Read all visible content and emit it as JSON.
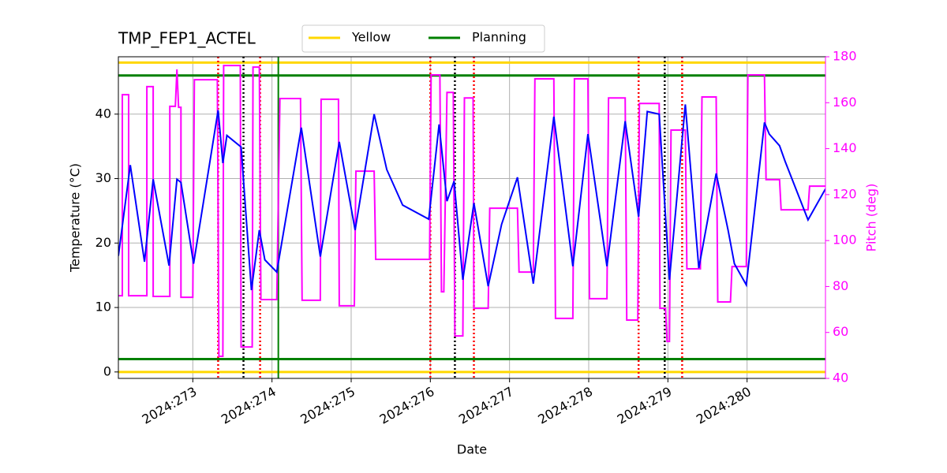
{
  "chart_data": {
    "type": "line",
    "title": "TMP_FEP1_ACTEL",
    "xlabel": "Date",
    "ylabel": "Temperature (°C)",
    "y2label": "Pitch (deg)",
    "y2color": "magenta",
    "grid": true,
    "legend_loc": "upper center",
    "xlim": [
      272.06,
      280.99
    ],
    "ylim": [
      -1,
      48.9
    ],
    "y2lim": [
      40,
      180
    ],
    "xticks": [
      {
        "value": 273,
        "label": "2024:273"
      },
      {
        "value": 274,
        "label": "2024:274"
      },
      {
        "value": 275,
        "label": "2024:275"
      },
      {
        "value": 276,
        "label": "2024:276"
      },
      {
        "value": 277,
        "label": "2024:277"
      },
      {
        "value": 278,
        "label": "2024:278"
      },
      {
        "value": 279,
        "label": "2024:279"
      },
      {
        "value": 280,
        "label": "2024:280"
      }
    ],
    "yticks": [
      0,
      10,
      20,
      30,
      40
    ],
    "y2ticks": [
      40,
      60,
      80,
      100,
      120,
      140,
      160,
      180
    ],
    "hlines": [
      {
        "name": "Yellow",
        "color": "gold",
        "values": [
          48,
          0
        ]
      },
      {
        "name": "Planning",
        "color": "green",
        "values": [
          46,
          2
        ]
      }
    ],
    "vlines": [
      {
        "color": "green",
        "style": "solid",
        "x": [
          274.08
        ]
      },
      {
        "color": "red",
        "style": "dotted",
        "x": [
          273.32,
          273.85,
          276.0,
          276.55,
          278.63,
          279.18
        ]
      },
      {
        "color": "black",
        "style": "dotted",
        "x": [
          273.64,
          276.31,
          278.96
        ]
      }
    ],
    "series": [
      {
        "color": "magenta",
        "axis": "y2",
        "x": [
          272.06,
          272.11,
          272.11,
          272.19,
          272.19,
          272.42,
          272.42,
          272.5,
          272.5,
          272.71,
          272.71,
          272.78,
          272.8,
          272.82,
          272.85,
          272.85,
          273.0,
          273.02,
          273.31,
          273.33,
          273.38,
          273.39,
          273.6,
          273.61,
          273.75,
          273.76,
          273.84,
          273.86,
          274.06,
          274.1,
          274.36,
          274.38,
          274.61,
          274.62,
          274.84,
          274.85,
          275.04,
          275.06,
          275.29,
          275.31,
          275.99,
          276.01,
          276.12,
          276.14,
          276.17,
          276.21,
          276.29,
          276.31,
          276.41,
          276.43,
          276.54,
          276.55,
          276.73,
          276.75,
          277.1,
          277.12,
          277.3,
          277.32,
          277.56,
          277.58,
          277.8,
          277.82,
          277.99,
          278.01,
          278.23,
          278.25,
          278.46,
          278.48,
          278.62,
          278.64,
          278.89,
          278.9,
          278.97,
          278.99,
          279.02,
          279.04,
          279.22,
          279.24,
          279.41,
          279.43,
          279.61,
          279.63,
          279.79,
          279.81,
          279.99,
          280.01,
          280.22,
          280.24,
          280.41,
          280.43,
          280.77,
          280.79,
          280.99
        ],
        "values": [
          76,
          76,
          163.5,
          163.5,
          76,
          76,
          167,
          167,
          75.7,
          75.7,
          158.4,
          158.4,
          174.5,
          158,
          158,
          75.3,
          75.3,
          170,
          170,
          49.6,
          49.6,
          176.2,
          176.2,
          53.7,
          53.7,
          175.5,
          175.5,
          74.3,
          74.3,
          161.8,
          161.8,
          74,
          74,
          161.5,
          161.5,
          71.6,
          71.6,
          130.2,
          130.2,
          91.8,
          91.8,
          172.1,
          172.1,
          77.7,
          77.7,
          164.5,
          164.5,
          58.5,
          58.5,
          162.1,
          162.1,
          70.5,
          70.5,
          114.1,
          114.1,
          86.3,
          86.3,
          170.4,
          170.4,
          66.1,
          66.1,
          170.4,
          170.4,
          74.7,
          74.7,
          162.1,
          162.1,
          65.4,
          65.4,
          159.7,
          159.7,
          70.5,
          70.5,
          56.1,
          56.1,
          148.1,
          148.1,
          87.7,
          87.7,
          162.5,
          162.5,
          73.3,
          73.3,
          88.7,
          88.7,
          172.1,
          172.1,
          126.5,
          126.5,
          113.4,
          113.4,
          123.7,
          123.7
        ]
      },
      {
        "color": "blue",
        "axis": "y",
        "x": [
          272.06,
          272.21,
          272.39,
          272.5,
          272.7,
          272.8,
          272.85,
          273.01,
          273.32,
          273.38,
          273.43,
          273.61,
          273.74,
          273.84,
          273.91,
          274.06,
          274.37,
          274.61,
          274.85,
          275.05,
          275.29,
          275.45,
          275.65,
          275.98,
          276.11,
          276.21,
          276.3,
          276.41,
          276.55,
          276.73,
          276.9,
          277.1,
          277.3,
          277.56,
          277.8,
          277.99,
          278.23,
          278.46,
          278.63,
          278.74,
          278.89,
          279.02,
          279.22,
          279.39,
          279.61,
          279.76,
          279.84,
          279.99,
          280.22,
          280.28,
          280.41,
          280.48,
          280.77,
          280.99
        ],
        "values": [
          18.0,
          32.1,
          17.1,
          29.9,
          16.5,
          29.9,
          29.4,
          16.8,
          40.6,
          32.4,
          36.7,
          34.9,
          12.7,
          22.0,
          17.4,
          15.5,
          37.9,
          17.9,
          35.7,
          22.0,
          40.0,
          31.4,
          25.9,
          23.7,
          38.4,
          26.5,
          29.6,
          14.3,
          26.2,
          13.3,
          22.9,
          30.2,
          13.7,
          39.6,
          16.4,
          36.9,
          16.4,
          38.9,
          24.1,
          40.4,
          40.0,
          14.3,
          41.5,
          16.1,
          30.8,
          22.0,
          16.8,
          13.5,
          38.7,
          36.9,
          35.1,
          32.7,
          23.6,
          28.4
        ]
      }
    ]
  }
}
